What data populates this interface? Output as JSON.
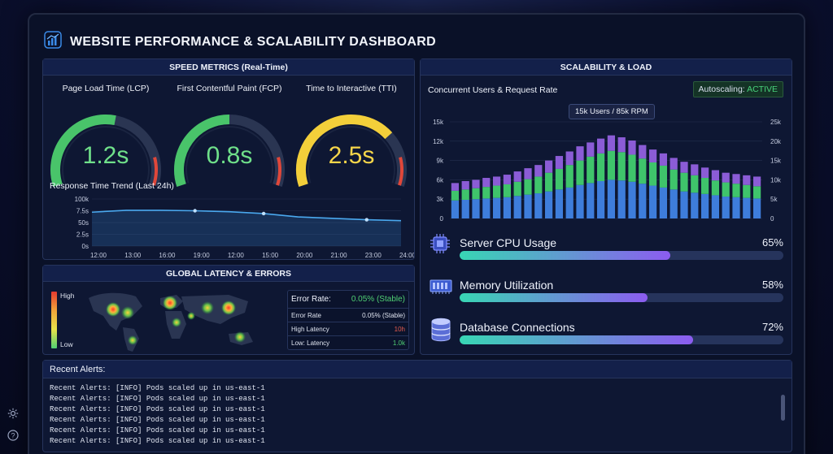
{
  "header": {
    "title": "WEBSITE PERFORMANCE & SCALABILITY DASHBOARD"
  },
  "speed": {
    "title": "SPEED METRICS (Real-Time)",
    "gauges": [
      {
        "label": "Page Load Time (LCP)",
        "value": "1.2s",
        "level": 0.55,
        "color": "#49c46a"
      },
      {
        "label": "First Contentful Paint (FCP)",
        "value": "0.8s",
        "level": 0.5,
        "color": "#49c46a"
      },
      {
        "label": "Time to Interactive (TTI)",
        "value": "2.5s",
        "level": 0.72,
        "color": "#f3cf3a"
      }
    ],
    "trend_title": "Response Time Trend (Last 24h)"
  },
  "chart_data": [
    {
      "type": "line",
      "title": "Response Time Trend (Last 24h)",
      "x": [
        "12:00",
        "13:00",
        "16:00",
        "19:00",
        "12:00",
        "15:00",
        "20:00",
        "21:00",
        "23:00",
        "24:00"
      ],
      "y_ticks": [
        "100k",
        "7.5s",
        "50s",
        "2.5s",
        "0s"
      ],
      "values": [
        7.2,
        7.6,
        7.6,
        7.5,
        7.3,
        6.9,
        6.2,
        5.9,
        5.6,
        5.4
      ],
      "ylim": [
        0,
        10
      ]
    },
    {
      "type": "bar",
      "title": "Concurrent Users & Request Rate",
      "x_ticks": [
        "19:00",
        "17:00",
        "19:00",
        "21:00",
        "23:00",
        "25:00",
        "27:00",
        "29:00",
        "31:00",
        "33:00",
        "36:00"
      ],
      "y_left_ticks": [
        "15k",
        "12k",
        "9k",
        "6k",
        "3k",
        "0"
      ],
      "y_right_ticks": [
        "25k",
        "20k",
        "15k",
        "10k",
        "5k",
        "0"
      ],
      "ylim": [
        0,
        15
      ],
      "series": [
        {
          "values": [
            2.8,
            2.9,
            3.0,
            3.1,
            3.2,
            3.3,
            3.5,
            3.7,
            3.9,
            4.2,
            4.5,
            4.8,
            5.2,
            5.5,
            5.8,
            6.0,
            5.9,
            5.7,
            5.4,
            5.1,
            4.8,
            4.5,
            4.2,
            4.0,
            3.8,
            3.6,
            3.4,
            3.3,
            3.2,
            3.1
          ]
        },
        {
          "values": [
            1.5,
            1.6,
            1.7,
            1.8,
            1.9,
            2.0,
            2.2,
            2.4,
            2.6,
            2.9,
            3.2,
            3.5,
            3.8,
            4.1,
            4.3,
            4.5,
            4.4,
            4.2,
            3.9,
            3.6,
            3.4,
            3.1,
            2.9,
            2.7,
            2.5,
            2.3,
            2.2,
            2.1,
            2.0,
            1.9
          ]
        },
        {
          "values": [
            1.2,
            1.3,
            1.3,
            1.4,
            1.4,
            1.5,
            1.6,
            1.7,
            1.8,
            1.9,
            2.0,
            2.1,
            2.2,
            2.2,
            2.3,
            2.4,
            2.3,
            2.2,
            2.1,
            2.0,
            1.9,
            1.8,
            1.7,
            1.7,
            1.6,
            1.6,
            1.5,
            1.5,
            1.5,
            1.5
          ]
        }
      ],
      "series_colors": [
        "#3e7ddb",
        "#3fc46b",
        "#8b5cd6"
      ]
    }
  ],
  "scal": {
    "title": "SCALABILITY & LOAD",
    "chart_title": "Concurrent Users & Request Rate",
    "autoscaling_label": "Autoscaling:",
    "autoscaling_status": "ACTIVE",
    "tooltip": "15k Users / 85k RPM",
    "resources": [
      {
        "label": "Server CPU Usage",
        "pct": "65%",
        "level": 0.65,
        "icon": "cpu-icon"
      },
      {
        "label": "Memory Utilization",
        "pct": "58%",
        "level": 0.58,
        "icon": "memory-icon"
      },
      {
        "label": "Database Connections",
        "pct": "72%",
        "level": 0.72,
        "icon": "database-icon"
      }
    ]
  },
  "latency": {
    "title": "GLOBAL LATENCY & ERRORS",
    "legend_high": "High",
    "legend_low": "Low",
    "error_rate_label": "Error Rate:",
    "error_rate_value": "0.05% (Stable)",
    "rows": [
      {
        "label": "Error Rate",
        "value": "0.05% (Stable)",
        "color": "#dfe4f0"
      },
      {
        "label": "High Latency",
        "value": "10h",
        "color": "#e35b4f"
      },
      {
        "label": "Low: Latency",
        "value": "1.0k",
        "color": "#4fcf73"
      }
    ]
  },
  "alerts": {
    "title": "Recent Alerts:",
    "lines": [
      "Recent Alerts: [INFO] Pods scaled up in us-east-1",
      "Recent Alerts: [INFO] Pods scaled up in us-east-1",
      "Recent Alerts: [INFO] Pods scaled up in us-east-1",
      "Recent Alerts: [INFO] Pods scaled up in us-east-1",
      "Recent Alerts: [INFO] Pods scaled up in us-east-1",
      "Recent Alerts: [INFO] Pods scaled up in us-east-1"
    ]
  }
}
